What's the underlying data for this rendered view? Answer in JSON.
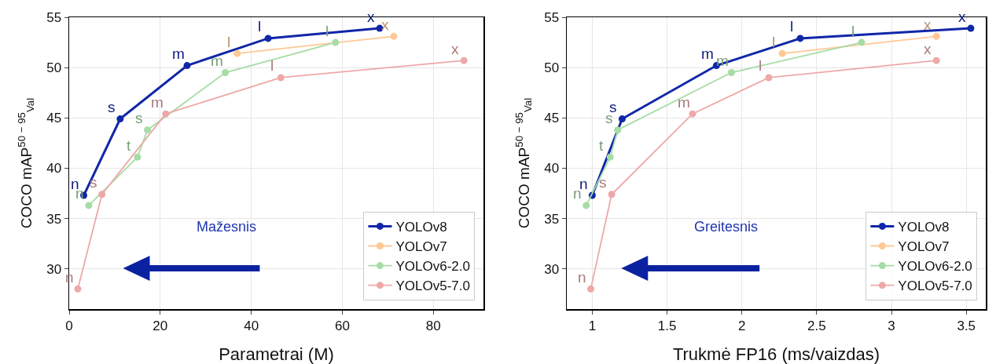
{
  "chart_data": [
    {
      "type": "line",
      "xlabel": "Parametrai (M)",
      "ylabel": "COCO mAP$^{50 − 95}$$_{Val}$",
      "xlim": [
        0,
        91
      ],
      "xticks": [
        0,
        20,
        40,
        60,
        80
      ],
      "ylim": [
        26,
        55
      ],
      "yticks": [
        30,
        35,
        40,
        45,
        50,
        55
      ],
      "grid": true,
      "legend": "bottom right",
      "marker": "circle",
      "series": [
        {
          "name": "YOLOv8",
          "color": "#1027a8",
          "x": [
            3.2,
            11.2,
            25.9,
            43.7,
            68.2
          ],
          "values": [
            37.3,
            44.9,
            50.2,
            52.9,
            53.9
          ]
        },
        {
          "name": "YOLOv7",
          "color": "#ffc894",
          "x": [
            36.9,
            71.3
          ],
          "values": [
            51.4,
            53.1
          ]
        },
        {
          "name": "YOLOv6-2.0",
          "color": "#a6dca6",
          "x": [
            4.3,
            15.0,
            17.2,
            34.3,
            58.5
          ],
          "values": [
            36.3,
            41.1,
            43.8,
            49.5,
            52.5
          ]
        },
        {
          "name": "YOLOv5-7.0",
          "color": "#eea8a8",
          "x": [
            1.9,
            7.2,
            21.2,
            46.5,
            86.7
          ],
          "values": [
            28.0,
            37.4,
            45.4,
            49.0,
            50.7
          ]
        }
      ],
      "annotations": [
        {
          "text": "n",
          "x": 3.2,
          "y": 37.3
        },
        {
          "text": "s",
          "x": 11.2,
          "y": 44.9
        },
        {
          "text": "m",
          "x": 25.9,
          "y": 50.2
        },
        {
          "text": "l",
          "x": 43.7,
          "y": 52.9
        },
        {
          "text": "x",
          "x": 68.2,
          "y": 53.9
        },
        {
          "text": "l",
          "x": 36.9,
          "y": 51.4
        },
        {
          "text": "x",
          "x": 71.3,
          "y": 53.1
        },
        {
          "text": "n",
          "x": 4.3,
          "y": 36.3
        },
        {
          "text": "t",
          "x": 15.0,
          "y": 41.1
        },
        {
          "text": "s",
          "x": 17.2,
          "y": 43.8
        },
        {
          "text": "m",
          "x": 34.3,
          "y": 49.5
        },
        {
          "text": "l",
          "x": 58.5,
          "y": 52.5
        },
        {
          "text": "n",
          "x": 1.9,
          "y": 28.0
        },
        {
          "text": "s",
          "x": 7.2,
          "y": 37.4
        },
        {
          "text": "m",
          "x": 21.2,
          "y": 45.4
        },
        {
          "text": "l",
          "x": 46.5,
          "y": 49.0
        },
        {
          "text": "x",
          "x": 86.7,
          "y": 50.7
        },
        "Mažesnis"
      ]
    },
    {
      "type": "line",
      "xlabel": "Trukmė FP16 (ms/vaizdas)",
      "ylabel": "COCO mAP$^{50 − 95}$$_{Val}$",
      "xlim": [
        0.83,
        3.63
      ],
      "xticks": [
        1.0,
        1.5,
        2.0,
        2.5,
        3.0,
        3.5
      ],
      "ylim": [
        26,
        55
      ],
      "yticks": [
        30,
        35,
        40,
        45,
        50,
        55
      ],
      "grid": true,
      "legend": "bottom right",
      "marker": "circle",
      "series": [
        {
          "name": "YOLOv8",
          "color": "#1027a8",
          "x": [
            1.0,
            1.2,
            1.83,
            2.39,
            3.53
          ],
          "values": [
            37.3,
            44.9,
            50.2,
            52.9,
            53.9
          ]
        },
        {
          "name": "YOLOv7",
          "color": "#ffc894",
          "x": [
            2.27,
            3.3
          ],
          "values": [
            51.4,
            53.1
          ]
        },
        {
          "name": "YOLOv6-2.0",
          "color": "#a6dca6",
          "x": [
            0.96,
            1.12,
            1.17,
            1.93,
            2.8
          ],
          "values": [
            36.3,
            41.1,
            43.8,
            49.5,
            52.5
          ]
        },
        {
          "name": "YOLOv5-7.0",
          "color": "#eea8a8",
          "x": [
            0.99,
            1.13,
            1.67,
            2.18,
            3.3
          ],
          "values": [
            28.0,
            37.4,
            45.4,
            49.0,
            50.7
          ]
        }
      ],
      "annotations": [
        {
          "text": "n",
          "x": 1.0,
          "y": 37.3
        },
        {
          "text": "s",
          "x": 1.2,
          "y": 44.9
        },
        {
          "text": "m",
          "x": 1.83,
          "y": 50.2
        },
        {
          "text": "l",
          "x": 2.39,
          "y": 52.9
        },
        {
          "text": "x",
          "x": 3.53,
          "y": 53.9
        },
        {
          "text": "l",
          "x": 2.27,
          "y": 51.4
        },
        {
          "text": "x",
          "x": 3.3,
          "y": 53.1
        },
        {
          "text": "n",
          "x": 0.96,
          "y": 36.3
        },
        {
          "text": "t",
          "x": 1.12,
          "y": 41.1
        },
        {
          "text": "s",
          "x": 1.17,
          "y": 43.8
        },
        {
          "text": "m",
          "x": 1.93,
          "y": 49.5
        },
        {
          "text": "l",
          "x": 2.8,
          "y": 52.5
        },
        {
          "text": "n",
          "x": 0.99,
          "y": 28.0
        },
        {
          "text": "s",
          "x": 1.13,
          "y": 37.4
        },
        {
          "text": "m",
          "x": 1.67,
          "y": 45.4
        },
        {
          "text": "l",
          "x": 2.18,
          "y": 49.0
        },
        {
          "text": "x",
          "x": 3.3,
          "y": 50.7
        },
        "Greitesnis"
      ]
    }
  ]
}
